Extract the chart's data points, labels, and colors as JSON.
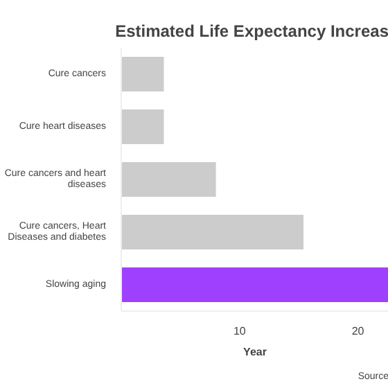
{
  "chart_data": {
    "type": "bar",
    "orientation": "horizontal",
    "title": "Estimated Life Expectancy Increas",
    "xlabel": "Year",
    "categories": [
      "Cure cancers",
      "Cure heart diseases",
      "Cure cancers and heart diseases",
      "Cure cancers, Heart Diseases and diabetes",
      "Slowing aging"
    ],
    "values": [
      3.6,
      3.6,
      8.0,
      15.4,
      22.6
    ],
    "colors": [
      "#cccccc",
      "#cccccc",
      "#cccccc",
      "#cccccc",
      "#a040ff"
    ],
    "xlim": [
      0,
      22.6
    ],
    "xticks": [
      10,
      20
    ],
    "grid": false,
    "annotations": [
      "Source"
    ]
  }
}
